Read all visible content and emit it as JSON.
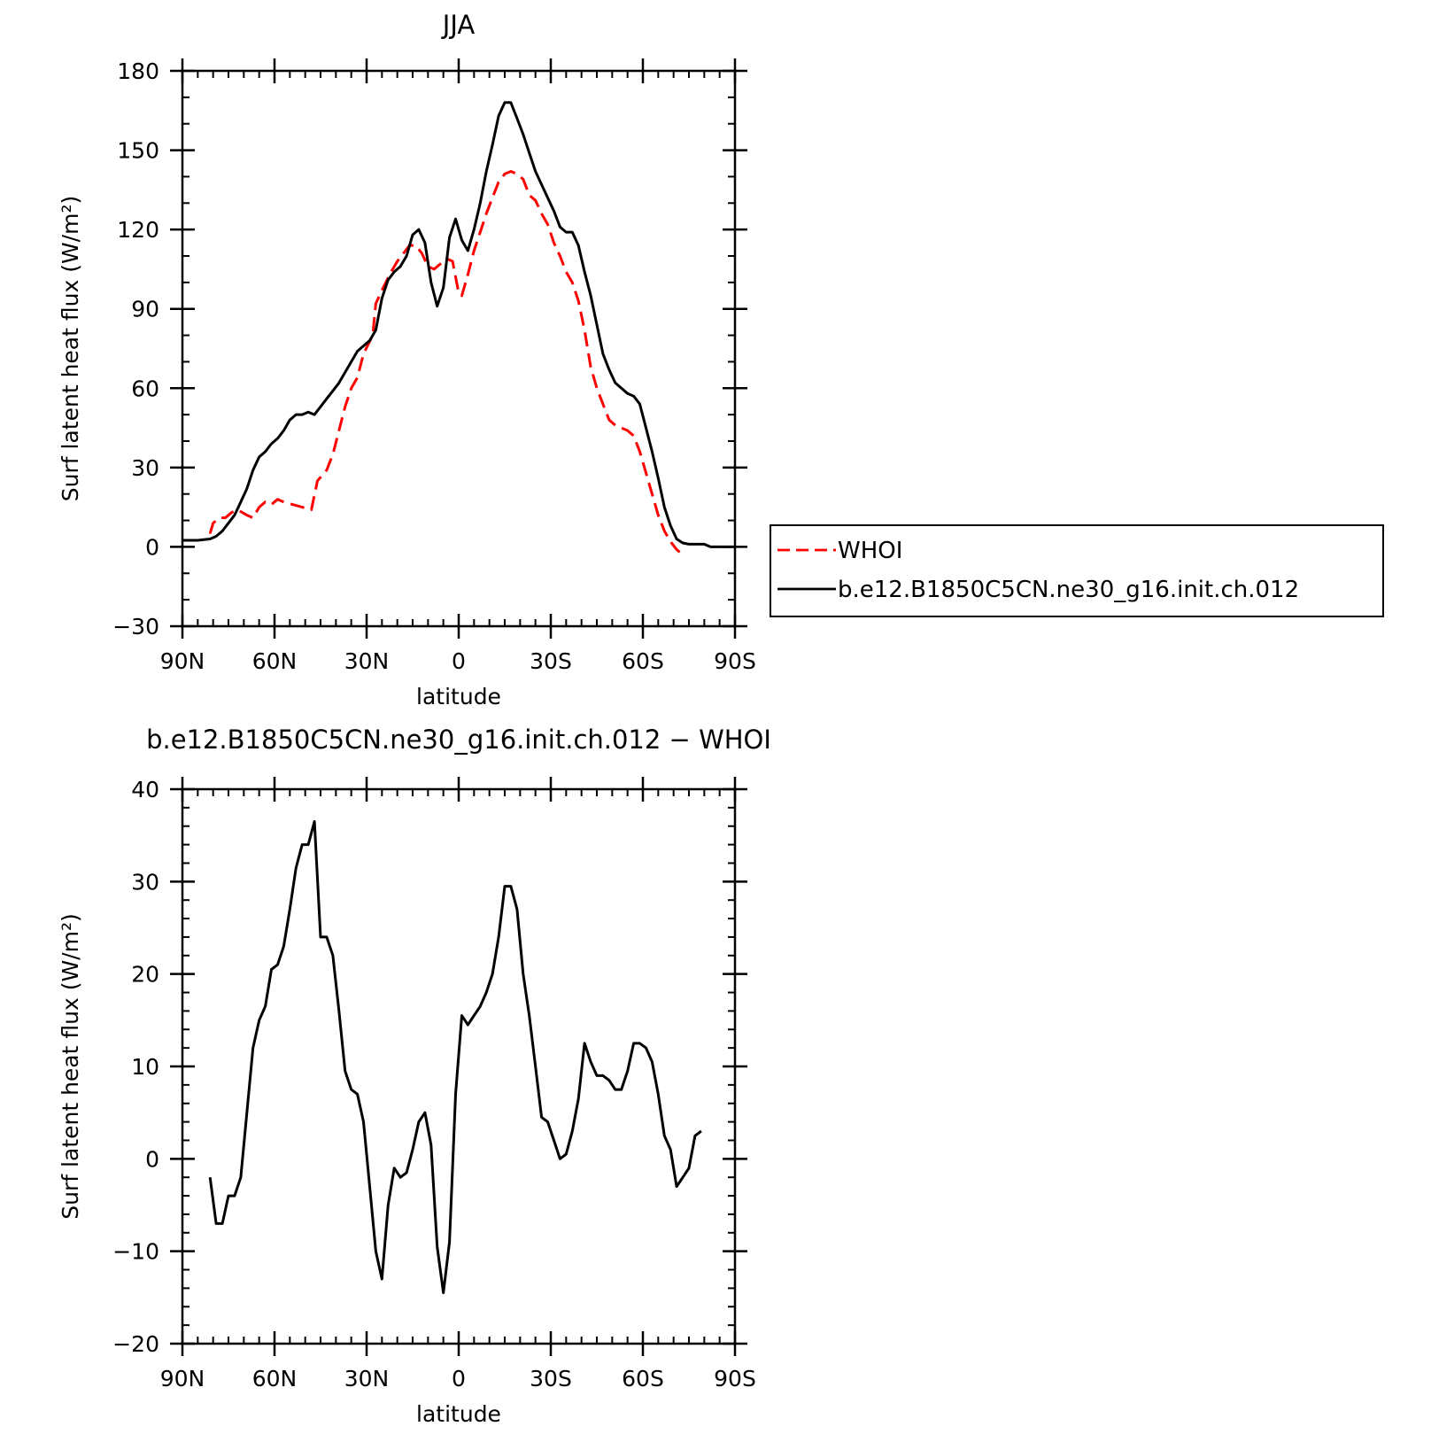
{
  "chart_data": [
    {
      "type": "line",
      "title": "JJA",
      "xlabel": "latitude",
      "ylabel": "Surf latent heat flux (W/m²)",
      "xlim": [
        90,
        -90
      ],
      "ylim": [
        -30,
        180
      ],
      "xticks": [
        {
          "value": 90,
          "label": "90N"
        },
        {
          "value": 60,
          "label": "60N"
        },
        {
          "value": 30,
          "label": "30N"
        },
        {
          "value": 0,
          "label": "0"
        },
        {
          "value": -30,
          "label": "30S"
        },
        {
          "value": -60,
          "label": "60S"
        },
        {
          "value": -90,
          "label": "90S"
        }
      ],
      "yticks": [
        -30,
        0,
        30,
        60,
        90,
        120,
        150,
        180
      ],
      "legend": "right",
      "series": [
        {
          "name": "WHOI",
          "color": "#ff0000",
          "dash": true,
          "points": [
            [
              81,
              5
            ],
            [
              80,
              9
            ],
            [
              78,
              11
            ],
            [
              76,
              11
            ],
            [
              74,
              13
            ],
            [
              72,
              14
            ],
            [
              69,
              12
            ],
            [
              67,
              11
            ],
            [
              65,
              15
            ],
            [
              63,
              17
            ],
            [
              61,
              16
            ],
            [
              59,
              18
            ],
            [
              57,
              17
            ],
            [
              54,
              16
            ],
            [
              51,
              15
            ],
            [
              48,
              14
            ],
            [
              46,
              25
            ],
            [
              43,
              29
            ],
            [
              41,
              35
            ],
            [
              39,
              44
            ],
            [
              37,
              53
            ],
            [
              35,
              60
            ],
            [
              33,
              64
            ],
            [
              31,
              73
            ],
            [
              28,
              80
            ],
            [
              27,
              92
            ],
            [
              25,
              97
            ],
            [
              22,
              104
            ],
            [
              20,
              108
            ],
            [
              18,
              111
            ],
            [
              16,
              114
            ],
            [
              14,
              114
            ],
            [
              12,
              111
            ],
            [
              10,
              106
            ],
            [
              8,
              105
            ],
            [
              6,
              107
            ],
            [
              4,
              109
            ],
            [
              2,
              108
            ],
            [
              0,
              96
            ],
            [
              -1,
              95
            ],
            [
              -3,
              103
            ],
            [
              -5,
              112
            ],
            [
              -7,
              119
            ],
            [
              -9,
              126
            ],
            [
              -11,
              132
            ],
            [
              -13,
              138
            ],
            [
              -15,
              141
            ],
            [
              -17,
              142
            ],
            [
              -19,
              141
            ],
            [
              -21,
              139
            ],
            [
              -23,
              133
            ],
            [
              -25,
              131
            ],
            [
              -27,
              126
            ],
            [
              -29,
              122
            ],
            [
              -31,
              115
            ],
            [
              -33,
              110
            ],
            [
              -35,
              104
            ],
            [
              -37,
              100
            ],
            [
              -39,
              93
            ],
            [
              -41,
              82
            ],
            [
              -43,
              68
            ],
            [
              -45,
              60
            ],
            [
              -47,
              54
            ],
            [
              -49,
              48
            ],
            [
              -51,
              46
            ],
            [
              -53,
              45
            ],
            [
              -55,
              44
            ],
            [
              -57,
              42
            ],
            [
              -59,
              36
            ],
            [
              -61,
              28
            ],
            [
              -63,
              20
            ],
            [
              -65,
              12
            ],
            [
              -67,
              6
            ],
            [
              -69,
              2
            ],
            [
              -71,
              -1
            ],
            [
              -72,
              -2
            ]
          ]
        },
        {
          "name": "b.e12.B1850C5CN.ne30_g16.init.ch.012",
          "color": "#000000",
          "dash": false,
          "points": [
            [
              90,
              2.5
            ],
            [
              85,
              2.5
            ],
            [
              81,
              3
            ],
            [
              79,
              4
            ],
            [
              77,
              6
            ],
            [
              75,
              9
            ],
            [
              73,
              12
            ],
            [
              71,
              17
            ],
            [
              69,
              22
            ],
            [
              67,
              29
            ],
            [
              65,
              34
            ],
            [
              63,
              36
            ],
            [
              61,
              39
            ],
            [
              59,
              41
            ],
            [
              57,
              44
            ],
            [
              55,
              48
            ],
            [
              53,
              50
            ],
            [
              51,
              50
            ],
            [
              49,
              51
            ],
            [
              47,
              50
            ],
            [
              45,
              53
            ],
            [
              43,
              56
            ],
            [
              41,
              59
            ],
            [
              39,
              62
            ],
            [
              37,
              66
            ],
            [
              35,
              70
            ],
            [
              33,
              74
            ],
            [
              31,
              76
            ],
            [
              29,
              78
            ],
            [
              27,
              82
            ],
            [
              25,
              94
            ],
            [
              23,
              101
            ],
            [
              21,
              104
            ],
            [
              19,
              106
            ],
            [
              17,
              110
            ],
            [
              15,
              118
            ],
            [
              13,
              120
            ],
            [
              11,
              115
            ],
            [
              9,
              100
            ],
            [
              7,
              91
            ],
            [
              5,
              98
            ],
            [
              3,
              117
            ],
            [
              1,
              124
            ],
            [
              -1,
              116
            ],
            [
              -3,
              112
            ],
            [
              -5,
              120
            ],
            [
              -7,
              130
            ],
            [
              -9,
              142
            ],
            [
              -11,
              152
            ],
            [
              -13,
              163
            ],
            [
              -15,
              168
            ],
            [
              -17,
              168
            ],
            [
              -19,
              162
            ],
            [
              -21,
              156
            ],
            [
              -23,
              149
            ],
            [
              -25,
              142
            ],
            [
              -27,
              137
            ],
            [
              -29,
              132
            ],
            [
              -31,
              127
            ],
            [
              -33,
              121
            ],
            [
              -35,
              119
            ],
            [
              -37,
              119
            ],
            [
              -39,
              114
            ],
            [
              -41,
              104
            ],
            [
              -43,
              95
            ],
            [
              -45,
              84
            ],
            [
              -47,
              73
            ],
            [
              -49,
              67
            ],
            [
              -51,
              62
            ],
            [
              -53,
              60
            ],
            [
              -55,
              58
            ],
            [
              -57,
              57
            ],
            [
              -59,
              54
            ],
            [
              -61,
              45
            ],
            [
              -63,
              36
            ],
            [
              -65,
              26
            ],
            [
              -67,
              15
            ],
            [
              -69,
              8
            ],
            [
              -71,
              3
            ],
            [
              -73,
              1.5
            ],
            [
              -75,
              1
            ],
            [
              -80,
              1
            ],
            [
              -82,
              0
            ],
            [
              -85,
              0
            ],
            [
              -90,
              0
            ]
          ]
        }
      ]
    },
    {
      "type": "line",
      "title": "b.e12.B1850C5CN.ne30_g16.init.ch.012 − WHOI",
      "xlabel": "latitude",
      "ylabel": "Surf latent heat flux (W/m²)",
      "xlim": [
        90,
        -90
      ],
      "ylim": [
        -20,
        40
      ],
      "xticks": [
        {
          "value": 90,
          "label": "90N"
        },
        {
          "value": 60,
          "label": "60N"
        },
        {
          "value": 30,
          "label": "30N"
        },
        {
          "value": 0,
          "label": "0"
        },
        {
          "value": -30,
          "label": "30S"
        },
        {
          "value": -60,
          "label": "60S"
        },
        {
          "value": -90,
          "label": "90S"
        }
      ],
      "yticks": [
        -20,
        -10,
        0,
        10,
        20,
        30,
        40
      ],
      "series": [
        {
          "color": "#000000",
          "dash": false,
          "points": [
            [
              81,
              -2
            ],
            [
              79,
              -7
            ],
            [
              77,
              -7
            ],
            [
              75,
              -4
            ],
            [
              73,
              -4
            ],
            [
              71,
              -2
            ],
            [
              69,
              5
            ],
            [
              67,
              12
            ],
            [
              65,
              15
            ],
            [
              63,
              16.5
            ],
            [
              61,
              20.5
            ],
            [
              59,
              21
            ],
            [
              57,
              23
            ],
            [
              55,
              27
            ],
            [
              53,
              31.5
            ],
            [
              51,
              34
            ],
            [
              49,
              34
            ],
            [
              47,
              36.5
            ],
            [
              45,
              24
            ],
            [
              43,
              24
            ],
            [
              41,
              22
            ],
            [
              39,
              16
            ],
            [
              37,
              9.5
            ],
            [
              35,
              7.5
            ],
            [
              33,
              7
            ],
            [
              31,
              4
            ],
            [
              29,
              -3
            ],
            [
              27,
              -10
            ],
            [
              25,
              -13
            ],
            [
              23,
              -5
            ],
            [
              21,
              -1
            ],
            [
              19,
              -2
            ],
            [
              17,
              -1.5
            ],
            [
              15,
              1
            ],
            [
              13,
              4
            ],
            [
              11,
              5
            ],
            [
              9,
              1.5
            ],
            [
              7,
              -9.5
            ],
            [
              5,
              -14.5
            ],
            [
              3,
              -9
            ],
            [
              1,
              7
            ],
            [
              -1,
              15.5
            ],
            [
              -3,
              14.5
            ],
            [
              -5,
              15.5
            ],
            [
              -7,
              16.5
            ],
            [
              -9,
              18
            ],
            [
              -11,
              20
            ],
            [
              -13,
              24
            ],
            [
              -15,
              29.5
            ],
            [
              -17,
              29.5
            ],
            [
              -19,
              27
            ],
            [
              -21,
              20
            ],
            [
              -23,
              15.5
            ],
            [
              -25,
              10
            ],
            [
              -27,
              4.5
            ],
            [
              -29,
              4
            ],
            [
              -31,
              2
            ],
            [
              -33,
              0
            ],
            [
              -35,
              0.5
            ],
            [
              -37,
              3
            ],
            [
              -39,
              6.5
            ],
            [
              -41,
              12.5
            ],
            [
              -43,
              10.5
            ],
            [
              -45,
              9
            ],
            [
              -47,
              9
            ],
            [
              -49,
              8.5
            ],
            [
              -51,
              7.5
            ],
            [
              -53,
              7.5
            ],
            [
              -55,
              9.5
            ],
            [
              -57,
              12.5
            ],
            [
              -59,
              12.5
            ],
            [
              -61,
              12
            ],
            [
              -63,
              10.5
            ],
            [
              -65,
              7
            ],
            [
              -67,
              2.5
            ],
            [
              -69,
              1
            ],
            [
              -71,
              -3
            ],
            [
              -73,
              -2
            ],
            [
              -75,
              -1
            ],
            [
              -77,
              2.5
            ],
            [
              -79,
              3
            ]
          ]
        }
      ]
    }
  ]
}
